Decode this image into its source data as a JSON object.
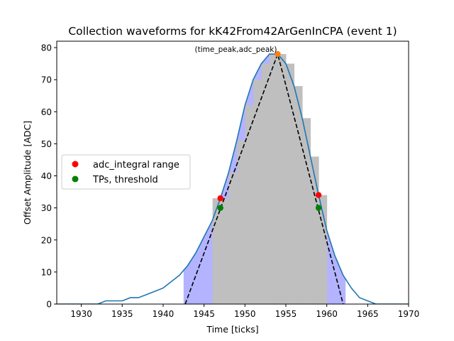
{
  "chart_data": {
    "type": "line",
    "title": "Collection waveforms for kK42From42ArGenInCPA (event 1)",
    "xlabel": "Time [ticks]",
    "ylabel": "Offset Amplitude [ADC]",
    "xlim": [
      1927,
      1970
    ],
    "ylim": [
      0,
      82
    ],
    "xticks": [
      1930,
      1935,
      1940,
      1945,
      1950,
      1955,
      1960,
      1965,
      1970
    ],
    "yticks": [
      0,
      10,
      20,
      30,
      40,
      50,
      60,
      70,
      80
    ],
    "grid": false,
    "legend_position": "center-left",
    "waveform": {
      "color": "#1f77b4",
      "x": [
        1927,
        1928,
        1929,
        1930,
        1931,
        1932,
        1933,
        1934,
        1935,
        1936,
        1937,
        1938,
        1939,
        1940,
        1941,
        1942,
        1943,
        1944,
        1945,
        1946,
        1947,
        1948,
        1949,
        1950,
        1951,
        1952,
        1953,
        1954,
        1955,
        1956,
        1957,
        1958,
        1959,
        1960,
        1961,
        1962,
        1963,
        1964,
        1965,
        1966,
        1967,
        1968,
        1969,
        1970
      ],
      "y": [
        0,
        0,
        0,
        0,
        0,
        0,
        1,
        1,
        1,
        2,
        2,
        3,
        4,
        5,
        7,
        9,
        12,
        16,
        21,
        26,
        33,
        41,
        51,
        62,
        70,
        75,
        78,
        78,
        75,
        68,
        58,
        46,
        34,
        23,
        15,
        9,
        5,
        2,
        1,
        0,
        0,
        0,
        0,
        0
      ]
    },
    "bars": {
      "color": "#bfbfbf",
      "x": [
        1946,
        1947,
        1948,
        1949,
        1950,
        1951,
        1952,
        1953,
        1954,
        1955,
        1956,
        1957,
        1958,
        1959
      ],
      "values": [
        33,
        33,
        41,
        51,
        62,
        70,
        75,
        78,
        78,
        75,
        68,
        58,
        46,
        34
      ]
    },
    "shaded_region": {
      "color": "#b3b3ff",
      "x_start": 1942.5,
      "x_end": 1962.3
    },
    "triangle": {
      "color": "#000000",
      "style": "dashed",
      "x": [
        1942.7,
        1954,
        1962
      ],
      "y": [
        0,
        78,
        0
      ]
    },
    "peak": {
      "color": "#ff7f0e",
      "x": 1954,
      "y": 78,
      "label": "(time_peak,adc_peak)"
    },
    "series": [
      {
        "name": "adc_integral range",
        "color": "#ff0000",
        "points": [
          [
            1947,
            33
          ],
          [
            1959,
            34
          ]
        ]
      },
      {
        "name": "TPs, threshold",
        "color": "#008000",
        "points": [
          [
            1947,
            30
          ],
          [
            1959,
            30
          ]
        ]
      }
    ]
  }
}
